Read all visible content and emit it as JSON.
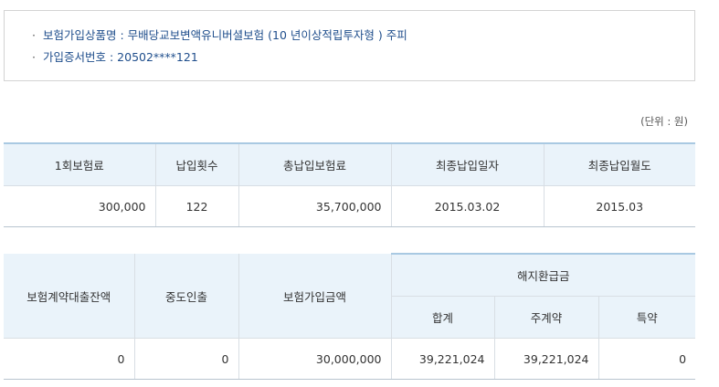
{
  "info": {
    "bullet": "·",
    "product_label": "보험가입상품명 : ",
    "product_value": "무배당교보변액유니버셜보험 (10 년이상적립투자형 ) 주피",
    "cert_label": "가입증서번호 : ",
    "cert_value": "20502****121"
  },
  "unit": "(단위 : 원)",
  "table1": {
    "headers": [
      "1회보험료",
      "납입횟수",
      "총납입보험료",
      "최종납입일자",
      "최종납입월도"
    ],
    "row": [
      "300,000",
      "122",
      "35,700,000",
      "2015.03.02",
      "2015.03"
    ]
  },
  "table2": {
    "headers": {
      "loan_balance": "보험계약대출잔액",
      "mid_withdrawal": "중도인출",
      "insured_amount": "보험가입금액",
      "surrender_group": "해지환급금",
      "total": "합계",
      "main_contract": "주계약",
      "rider": "특약"
    },
    "row": [
      "0",
      "0",
      "30,000,000",
      "39,221,024",
      "39,221,024",
      "0"
    ]
  }
}
